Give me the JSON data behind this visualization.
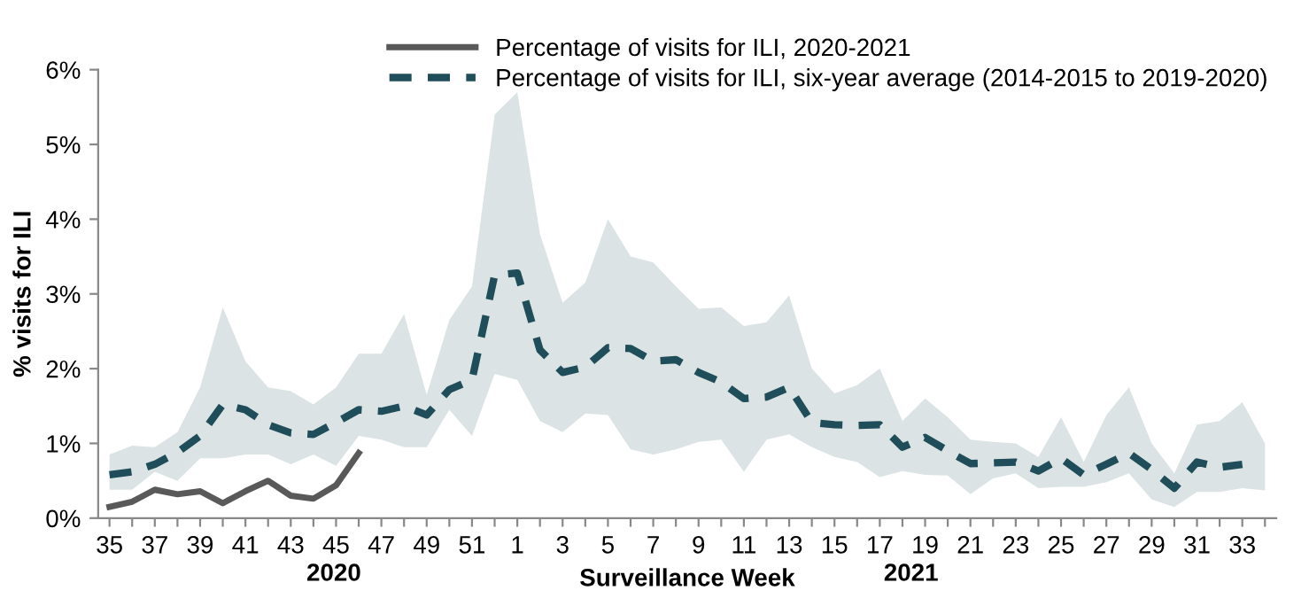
{
  "chart_data": {
    "type": "line",
    "xlabel": "Surveillance Week",
    "ylabel": "% visits for ILI",
    "categories": [
      "35",
      null,
      "37",
      null,
      "39",
      null,
      "41",
      null,
      "43",
      null,
      "45",
      null,
      "47",
      null,
      "49",
      null,
      "51",
      null,
      "1",
      null,
      "3",
      null,
      "5",
      null,
      "7",
      null,
      "9",
      null,
      "11",
      null,
      "13",
      null,
      "15",
      null,
      "17",
      null,
      "19",
      null,
      "21",
      null,
      "23",
      null,
      "25",
      null,
      "27",
      null,
      "29",
      null,
      "31",
      null,
      "33",
      null
    ],
    "series": [
      {
        "name": "Percentage of visits for ILI, 2020-2021",
        "color": "#595959",
        "line_style": "solid",
        "values": [
          0.15,
          0.22,
          0.38,
          0.32,
          0.36,
          0.2,
          0.36,
          0.5,
          0.3,
          0.26,
          0.44,
          0.87,
          null,
          null,
          null,
          null,
          null,
          null,
          null,
          null,
          null,
          null,
          null,
          null,
          null,
          null,
          null,
          null,
          null,
          null,
          null,
          null,
          null,
          null,
          null,
          null,
          null,
          null,
          null,
          null,
          null,
          null,
          null,
          null,
          null,
          null,
          null,
          null,
          null,
          null,
          null,
          null
        ]
      },
      {
        "name": "Percentage of visits for ILI, six-year average (2014-2015 to 2019-2020)",
        "color": "#1f4e5a",
        "line_style": "dashed",
        "values": [
          0.58,
          0.62,
          0.72,
          0.88,
          1.1,
          1.52,
          1.45,
          1.25,
          1.14,
          1.12,
          1.28,
          1.45,
          1.43,
          1.5,
          1.38,
          1.72,
          1.85,
          3.25,
          3.28,
          2.25,
          1.95,
          2.02,
          2.28,
          2.27,
          2.1,
          2.12,
          1.95,
          1.82,
          1.6,
          1.62,
          1.75,
          1.28,
          1.25,
          1.24,
          1.25,
          0.95,
          1.08,
          0.9,
          0.73,
          0.74,
          0.75,
          0.63,
          0.8,
          0.58,
          0.72,
          0.87,
          0.65,
          0.4,
          0.75,
          0.68,
          0.72,
          null
        ],
        "lower": [
          0.38,
          0.38,
          0.62,
          0.5,
          0.8,
          0.8,
          0.85,
          0.85,
          0.72,
          0.85,
          0.7,
          1.1,
          1.05,
          0.95,
          0.95,
          1.45,
          1.1,
          1.93,
          1.85,
          1.3,
          1.15,
          1.4,
          1.38,
          0.92,
          0.85,
          0.92,
          1.02,
          1.05,
          0.62,
          1.05,
          1.12,
          0.95,
          0.82,
          0.75,
          0.55,
          0.63,
          0.58,
          0.57,
          0.32,
          0.53,
          0.6,
          0.4,
          0.42,
          0.42,
          0.48,
          0.6,
          0.25,
          0.15,
          0.35,
          0.35,
          0.4,
          0.37
        ],
        "upper": [
          0.85,
          0.97,
          0.95,
          1.15,
          1.75,
          2.82,
          2.1,
          1.75,
          1.7,
          1.52,
          1.75,
          2.2,
          2.2,
          2.73,
          1.65,
          2.65,
          3.1,
          5.4,
          5.7,
          3.8,
          2.88,
          3.15,
          4.0,
          3.5,
          3.42,
          3.1,
          2.8,
          2.82,
          2.57,
          2.62,
          2.98,
          2.0,
          1.67,
          1.78,
          2.0,
          1.3,
          1.6,
          1.35,
          1.05,
          1.02,
          1.0,
          0.82,
          1.35,
          0.75,
          1.38,
          1.75,
          1.0,
          0.6,
          1.25,
          1.3,
          1.55,
          1.0
        ]
      }
    ],
    "ylim": [
      0,
      6
    ],
    "yticks": [
      {
        "value": 0,
        "label": "0%"
      },
      {
        "value": 1,
        "label": "1%"
      },
      {
        "value": 2,
        "label": "2%"
      },
      {
        "value": 3,
        "label": "3%"
      },
      {
        "value": 4,
        "label": "4%"
      },
      {
        "value": 5,
        "label": "5%"
      },
      {
        "value": 6,
        "label": "6%"
      }
    ],
    "annotations": [
      "2020",
      "2021"
    ],
    "grid": false,
    "legend": "top",
    "marker": "none"
  }
}
